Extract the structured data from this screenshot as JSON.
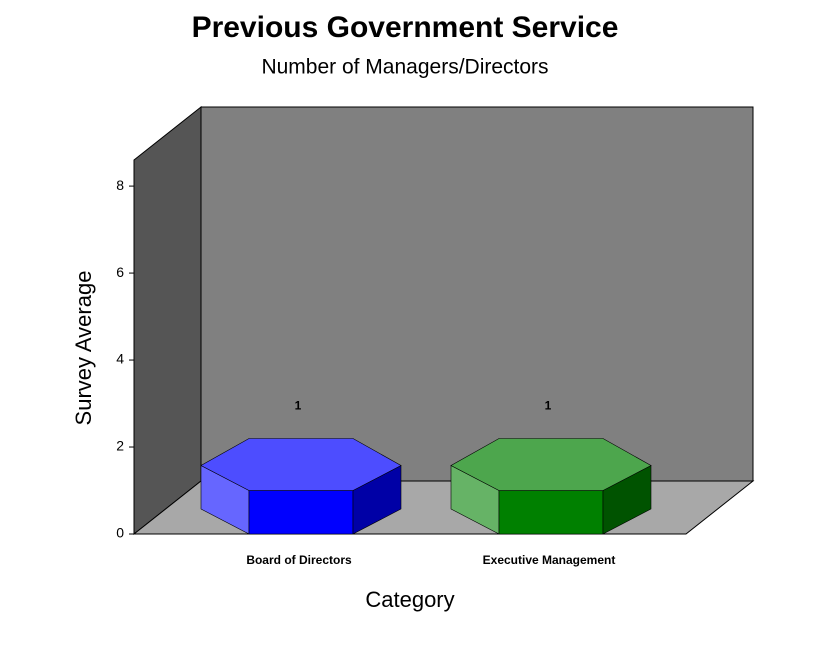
{
  "chart_data": {
    "type": "bar",
    "title": "Previous Government Service",
    "subtitle": "Number of Managers/Directors",
    "x_label": "Category",
    "y_label": "Survey Average",
    "categories": [
      "Board of Directors",
      "Executive Management"
    ],
    "values": [
      1,
      1
    ],
    "colors": [
      "#0000ff",
      "#008000"
    ],
    "ylim": [
      0,
      8.6
    ],
    "yticks": [
      0,
      2,
      4,
      6,
      8
    ],
    "grid": false
  }
}
